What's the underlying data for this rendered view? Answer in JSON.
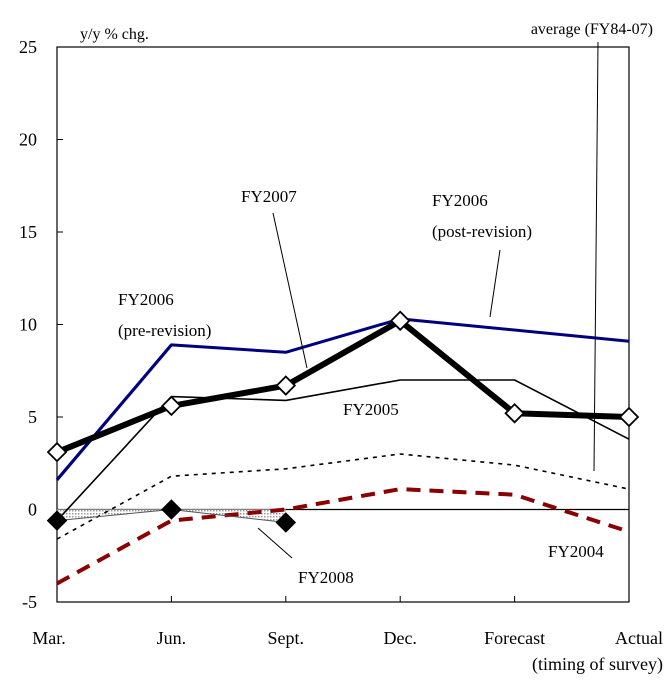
{
  "chart_data": {
    "type": "line",
    "ylabel": "y/y % chg.",
    "xlabel": "(timing of survey)",
    "categories": [
      "Mar.",
      "Jun.",
      "Sept.",
      "Dec.",
      "Forecast",
      "Actual"
    ],
    "ylim": [
      -5,
      25
    ],
    "yticks": [
      -5,
      0,
      5,
      10,
      15,
      20,
      25
    ],
    "grid": false,
    "series": [
      {
        "name": "FY2008",
        "values": [
          -0.6,
          0.0,
          -0.7,
          null,
          null,
          null
        ],
        "color": "#000000",
        "style": "diamond-filled"
      },
      {
        "name": "FY2007",
        "values": [
          3.1,
          5.6,
          6.7,
          10.2,
          5.2,
          5.0
        ],
        "color": "#000000",
        "style": "thick-open-diamond"
      },
      {
        "name": "FY2006 (post-revision)",
        "values": [
          1.6,
          8.9,
          8.5,
          10.3,
          null,
          9.1
        ],
        "color": "#00007f",
        "style": "solid"
      },
      {
        "name": "FY2006 (pre-revision)",
        "values": [
          1.6,
          8.9,
          null,
          null,
          null,
          null
        ],
        "color": "#00007f",
        "style": "solid"
      },
      {
        "name": "FY2005",
        "values": [
          -0.6,
          6.1,
          5.9,
          7.0,
          7.0,
          3.8
        ],
        "color": "#000000",
        "style": "thin"
      },
      {
        "name": "FY2004",
        "values": [
          -4.0,
          -0.6,
          0.0,
          1.1,
          0.8,
          -1.2
        ],
        "color": "#8b0000",
        "style": "dashed"
      },
      {
        "name": "average (FY84-07)",
        "values": [
          -1.6,
          1.8,
          2.2,
          3.0,
          2.4,
          1.1
        ],
        "color": "#000000",
        "style": "dotted"
      }
    ],
    "labels": {
      "fy2008": "FY2008",
      "fy2007": "FY2007",
      "fy2006_post_1": "FY2006",
      "fy2006_post_2": "(post-revision)",
      "fy2006_pre_1": "FY2006",
      "fy2006_pre_2": "(pre-revision)",
      "fy2005": "FY2005",
      "fy2004": "FY2004",
      "average": "average (FY84-07)"
    }
  }
}
